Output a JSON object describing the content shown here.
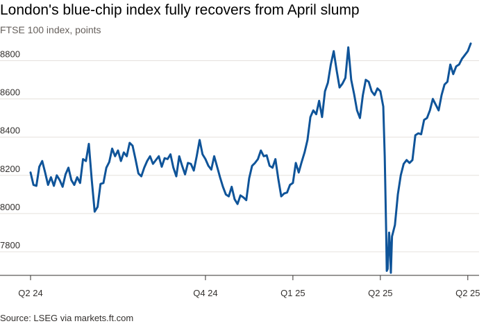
{
  "header": {
    "title": "London's blue-chip index fully recovers from April slump",
    "subtitle": "FTSE 100 index, points"
  },
  "footer": {
    "source": "Source: LSEG via markets.ft.com"
  },
  "colors": {
    "line": "#0f5499",
    "grid": "#e5e0dc",
    "text": "#33302e"
  },
  "chart_data": {
    "type": "line",
    "title": "London's blue-chip index fully recovers from April slump",
    "subtitle": "FTSE 100 index, points",
    "ylim": [
      7680,
      8900
    ],
    "yticks": [
      7800,
      8000,
      8200,
      8400,
      8600,
      8800
    ],
    "xticks": [
      {
        "label": "Q2 24",
        "t": 0
      },
      {
        "label": "Q4 24",
        "t": 6
      },
      {
        "label": "Q1 25",
        "t": 9
      },
      {
        "label": "Q2 25",
        "t": 12
      },
      {
        "label": "Q2 25",
        "t": 15
      }
    ],
    "grid": true,
    "series": [
      {
        "points": [
          [
            0.0,
            8215
          ],
          [
            0.1,
            8150
          ],
          [
            0.2,
            8145
          ],
          [
            0.3,
            8245
          ],
          [
            0.4,
            8275
          ],
          [
            0.5,
            8215
          ],
          [
            0.6,
            8150
          ],
          [
            0.7,
            8190
          ],
          [
            0.8,
            8145
          ],
          [
            0.9,
            8200
          ],
          [
            1.0,
            8175
          ],
          [
            1.1,
            8140
          ],
          [
            1.2,
            8205
          ],
          [
            1.3,
            8240
          ],
          [
            1.4,
            8175
          ],
          [
            1.5,
            8150
          ],
          [
            1.6,
            8190
          ],
          [
            1.7,
            8160
          ],
          [
            1.8,
            8285
          ],
          [
            1.9,
            8275
          ],
          [
            2.0,
            8365
          ],
          [
            2.1,
            8175
          ],
          [
            2.2,
            8010
          ],
          [
            2.3,
            8035
          ],
          [
            2.4,
            8155
          ],
          [
            2.5,
            8160
          ],
          [
            2.6,
            8240
          ],
          [
            2.7,
            8270
          ],
          [
            2.8,
            8340
          ],
          [
            2.9,
            8300
          ],
          [
            3.0,
            8330
          ],
          [
            3.1,
            8275
          ],
          [
            3.2,
            8320
          ],
          [
            3.3,
            8300
          ],
          [
            3.4,
            8370
          ],
          [
            3.5,
            8355
          ],
          [
            3.6,
            8285
          ],
          [
            3.7,
            8210
          ],
          [
            3.8,
            8195
          ],
          [
            3.9,
            8240
          ],
          [
            4.0,
            8275
          ],
          [
            4.1,
            8300
          ],
          [
            4.2,
            8260
          ],
          [
            4.3,
            8280
          ],
          [
            4.4,
            8300
          ],
          [
            4.5,
            8245
          ],
          [
            4.6,
            8290
          ],
          [
            4.7,
            8285
          ],
          [
            4.8,
            8310
          ],
          [
            4.9,
            8240
          ],
          [
            5.0,
            8195
          ],
          [
            5.1,
            8300
          ],
          [
            5.2,
            8250
          ],
          [
            5.3,
            8205
          ],
          [
            5.4,
            8265
          ],
          [
            5.5,
            8260
          ],
          [
            5.6,
            8225
          ],
          [
            5.7,
            8300
          ],
          [
            5.8,
            8385
          ],
          [
            5.9,
            8310
          ],
          [
            6.0,
            8285
          ],
          [
            6.1,
            8250
          ],
          [
            6.2,
            8230
          ],
          [
            6.3,
            8300
          ],
          [
            6.4,
            8245
          ],
          [
            6.5,
            8190
          ],
          [
            6.6,
            8140
          ],
          [
            6.7,
            8100
          ],
          [
            6.8,
            8090
          ],
          [
            6.9,
            8140
          ],
          [
            7.0,
            8075
          ],
          [
            7.1,
            8050
          ],
          [
            7.2,
            8095
          ],
          [
            7.3,
            8085
          ],
          [
            7.4,
            8070
          ],
          [
            7.5,
            8185
          ],
          [
            7.6,
            8250
          ],
          [
            7.7,
            8265
          ],
          [
            7.8,
            8285
          ],
          [
            7.9,
            8330
          ],
          [
            8.0,
            8300
          ],
          [
            8.1,
            8305
          ],
          [
            8.2,
            8250
          ],
          [
            8.3,
            8240
          ],
          [
            8.4,
            8285
          ],
          [
            8.5,
            8180
          ],
          [
            8.6,
            8090
          ],
          [
            8.7,
            8105
          ],
          [
            8.8,
            8110
          ],
          [
            8.9,
            8150
          ],
          [
            9.0,
            8160
          ],
          [
            9.1,
            8265
          ],
          [
            9.2,
            8215
          ],
          [
            9.3,
            8270
          ],
          [
            9.4,
            8320
          ],
          [
            9.5,
            8385
          ],
          [
            9.6,
            8505
          ],
          [
            9.7,
            8540
          ],
          [
            9.8,
            8520
          ],
          [
            9.9,
            8590
          ],
          [
            10.0,
            8505
          ],
          [
            10.1,
            8640
          ],
          [
            10.2,
            8685
          ],
          [
            10.3,
            8780
          ],
          [
            10.4,
            8850
          ],
          [
            10.5,
            8750
          ],
          [
            10.6,
            8660
          ],
          [
            10.7,
            8680
          ],
          [
            10.8,
            8710
          ],
          [
            10.9,
            8870
          ],
          [
            11.0,
            8700
          ],
          [
            11.1,
            8625
          ],
          [
            11.2,
            8540
          ],
          [
            11.3,
            8500
          ],
          [
            11.4,
            8620
          ],
          [
            11.5,
            8700
          ],
          [
            11.6,
            8690
          ],
          [
            11.7,
            8640
          ],
          [
            11.8,
            8620
          ],
          [
            11.9,
            8655
          ],
          [
            12.0,
            8640
          ],
          [
            12.05,
            8600
          ],
          [
            12.1,
            8560
          ],
          [
            12.15,
            8300
          ],
          [
            12.2,
            7900
          ],
          [
            12.22,
            7700
          ],
          [
            12.25,
            7710
          ],
          [
            12.3,
            7900
          ],
          [
            12.33,
            7830
          ],
          [
            12.36,
            7690
          ],
          [
            12.4,
            7880
          ],
          [
            12.5,
            7940
          ],
          [
            12.6,
            8100
          ],
          [
            12.7,
            8200
          ],
          [
            12.8,
            8260
          ],
          [
            12.9,
            8280
          ],
          [
            13.0,
            8265
          ],
          [
            13.1,
            8280
          ],
          [
            13.2,
            8410
          ],
          [
            13.3,
            8420
          ],
          [
            13.4,
            8415
          ],
          [
            13.5,
            8490
          ],
          [
            13.6,
            8500
          ],
          [
            13.7,
            8540
          ],
          [
            13.8,
            8600
          ],
          [
            13.9,
            8570
          ],
          [
            14.0,
            8540
          ],
          [
            14.1,
            8620
          ],
          [
            14.2,
            8675
          ],
          [
            14.3,
            8690
          ],
          [
            14.4,
            8780
          ],
          [
            14.5,
            8730
          ],
          [
            14.6,
            8770
          ],
          [
            14.7,
            8780
          ],
          [
            14.8,
            8810
          ],
          [
            14.9,
            8830
          ],
          [
            15.0,
            8850
          ],
          [
            15.1,
            8890
          ]
        ]
      }
    ]
  }
}
